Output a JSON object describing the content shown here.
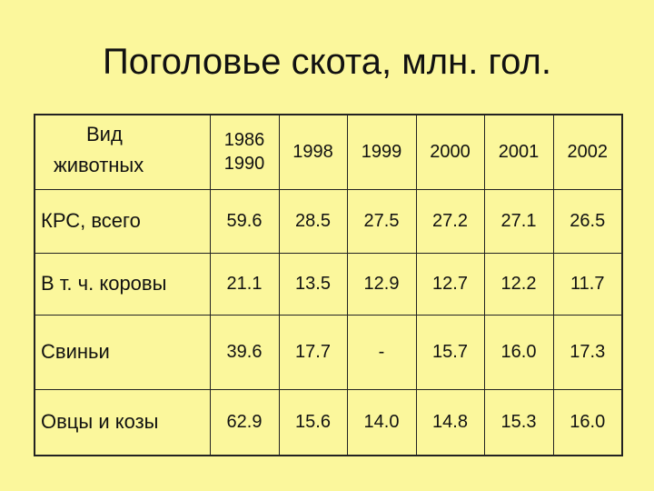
{
  "title": "Поголовье скота, млн. гол.",
  "table": {
    "corner": [
      "Вид",
      "животных"
    ],
    "columns": [
      [
        "1986",
        "1990"
      ],
      [
        "1998"
      ],
      [
        "1999"
      ],
      [
        "2000"
      ],
      [
        "2001"
      ],
      [
        "2002"
      ]
    ],
    "rows": [
      {
        "label": "КРС, всего",
        "values": [
          "59.6",
          "28.5",
          "27.5",
          "27.2",
          "27.1",
          "26.5"
        ]
      },
      {
        "label": "В т. ч. коровы",
        "values": [
          "21.1",
          "13.5",
          "12.9",
          "12.7",
          "12.2",
          "11.7"
        ]
      },
      {
        "label": "Свиньи",
        "values": [
          "39.6",
          "17.7",
          "-",
          "15.7",
          "16.0",
          "17.3"
        ]
      },
      {
        "label": "Овцы и козы",
        "values": [
          "62.9",
          "15.6",
          "14.0",
          "14.8",
          "15.3",
          "16.0"
        ]
      }
    ]
  }
}
